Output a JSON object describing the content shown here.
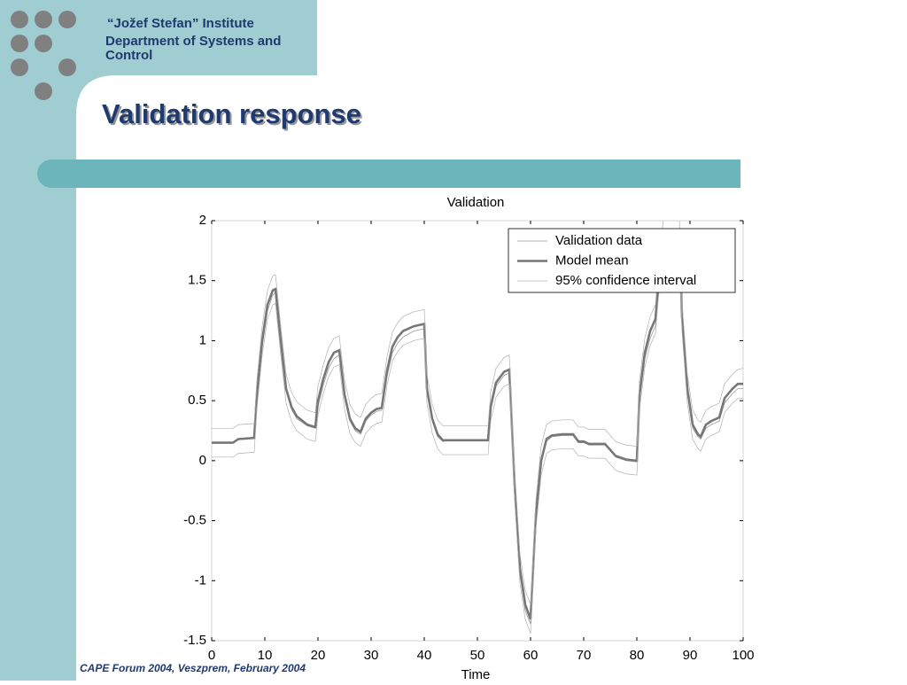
{
  "header": {
    "institute": "“Jožef Stefan” Institute",
    "department": "Department of Systems and Control"
  },
  "slide_title": "Validation response",
  "footer": "CAPE Forum 2004, Veszprem, February 2004",
  "chart_data": {
    "type": "line",
    "title": "Validation",
    "xlabel": "Time",
    "x": [
      0,
      4,
      5,
      8,
      8.5,
      9.5,
      10.5,
      11.5,
      12,
      13,
      14,
      15,
      16,
      18,
      19.5,
      20,
      21,
      22,
      23,
      24,
      25,
      26,
      27,
      28,
      29,
      30,
      31,
      32,
      33,
      34,
      35,
      36,
      38,
      40,
      40.5,
      41.5,
      42.5,
      43.5,
      45,
      48,
      52,
      52.5,
      53.5,
      55,
      56,
      57,
      58,
      59,
      60,
      61,
      62,
      63,
      64,
      66,
      68,
      69,
      70,
      71,
      74,
      76,
      78,
      80,
      80.5,
      81.5,
      82.5,
      83.5,
      84,
      85,
      88,
      88.5,
      89.5,
      90.5,
      91.5,
      92,
      93,
      94,
      95.5,
      96.5,
      98,
      99,
      100
    ],
    "series": [
      {
        "name": "Validation data",
        "color": "#9a9a9a",
        "values": [
          0.15,
          0.15,
          0.18,
          0.19,
          0.5,
          0.95,
          1.25,
          1.38,
          1.4,
          0.98,
          0.58,
          0.43,
          0.35,
          0.29,
          0.27,
          0.45,
          0.63,
          0.77,
          0.85,
          0.88,
          0.52,
          0.33,
          0.25,
          0.22,
          0.33,
          0.38,
          0.41,
          0.42,
          0.7,
          0.9,
          0.98,
          1.03,
          1.08,
          1.1,
          0.57,
          0.33,
          0.2,
          0.16,
          0.17,
          0.17,
          0.17,
          0.42,
          0.62,
          0.71,
          0.73,
          -0.25,
          -0.95,
          -1.25,
          -1.36,
          -0.5,
          -0.03,
          0.16,
          0.2,
          0.21,
          0.21,
          0.15,
          0.15,
          0.13,
          0.13,
          0.03,
          0.0,
          -0.01,
          0.5,
          0.85,
          1.02,
          1.12,
          1.4,
          1.85,
          1.85,
          1.15,
          0.56,
          0.27,
          0.2,
          0.18,
          0.27,
          0.3,
          0.33,
          0.48,
          0.56,
          0.6,
          0.6
        ]
      },
      {
        "name": "Model mean",
        "color": "#777777",
        "values": [
          0.15,
          0.15,
          0.18,
          0.19,
          0.55,
          1.0,
          1.3,
          1.42,
          1.43,
          1.0,
          0.6,
          0.45,
          0.37,
          0.3,
          0.28,
          0.5,
          0.68,
          0.82,
          0.9,
          0.92,
          0.55,
          0.35,
          0.27,
          0.24,
          0.35,
          0.4,
          0.43,
          0.44,
          0.75,
          0.95,
          1.03,
          1.08,
          1.12,
          1.14,
          0.6,
          0.35,
          0.22,
          0.17,
          0.17,
          0.17,
          0.17,
          0.45,
          0.65,
          0.74,
          0.76,
          -0.2,
          -0.9,
          -1.2,
          -1.32,
          -0.45,
          0.0,
          0.18,
          0.21,
          0.22,
          0.22,
          0.16,
          0.16,
          0.14,
          0.14,
          0.04,
          0.01,
          0.0,
          0.55,
          0.9,
          1.08,
          1.18,
          1.45,
          1.9,
          1.9,
          1.2,
          0.6,
          0.3,
          0.22,
          0.2,
          0.3,
          0.33,
          0.36,
          0.52,
          0.6,
          0.64,
          0.64
        ]
      },
      {
        "name": "95% confidence interval",
        "color": "#b0b0b0",
        "upper": [
          0.27,
          0.27,
          0.3,
          0.31,
          0.67,
          1.12,
          1.42,
          1.54,
          1.55,
          1.12,
          0.72,
          0.57,
          0.49,
          0.42,
          0.4,
          0.62,
          0.8,
          0.94,
          1.02,
          1.04,
          0.67,
          0.47,
          0.39,
          0.36,
          0.47,
          0.52,
          0.55,
          0.56,
          0.87,
          1.07,
          1.15,
          1.2,
          1.24,
          1.26,
          0.72,
          0.47,
          0.34,
          0.29,
          0.29,
          0.29,
          0.29,
          0.57,
          0.77,
          0.86,
          0.88,
          -0.08,
          -0.78,
          -1.08,
          -1.2,
          -0.33,
          0.12,
          0.3,
          0.33,
          0.34,
          0.34,
          0.28,
          0.28,
          0.26,
          0.26,
          0.16,
          0.13,
          0.12,
          0.67,
          1.02,
          1.2,
          1.3,
          1.57,
          2.02,
          2.02,
          1.32,
          0.72,
          0.42,
          0.34,
          0.32,
          0.42,
          0.45,
          0.48,
          0.64,
          0.72,
          0.76,
          0.77
        ],
        "lower": [
          0.03,
          0.03,
          0.06,
          0.07,
          0.43,
          0.88,
          1.18,
          1.3,
          1.31,
          0.88,
          0.48,
          0.33,
          0.25,
          0.18,
          0.16,
          0.38,
          0.56,
          0.7,
          0.78,
          0.8,
          0.43,
          0.23,
          0.15,
          0.12,
          0.23,
          0.28,
          0.31,
          0.32,
          0.63,
          0.83,
          0.91,
          0.96,
          1.0,
          1.02,
          0.48,
          0.23,
          0.1,
          0.05,
          0.05,
          0.05,
          0.05,
          0.33,
          0.53,
          0.62,
          0.64,
          -0.32,
          -1.02,
          -1.32,
          -1.44,
          -0.57,
          -0.12,
          0.06,
          0.09,
          0.1,
          0.1,
          0.04,
          0.04,
          0.02,
          0.02,
          -0.08,
          -0.11,
          -0.12,
          0.43,
          0.78,
          0.96,
          1.06,
          1.33,
          1.78,
          1.78,
          1.08,
          0.48,
          0.18,
          0.1,
          0.08,
          0.18,
          0.21,
          0.24,
          0.4,
          0.48,
          0.52,
          0.52
        ]
      }
    ],
    "xlim": [
      0,
      100
    ],
    "xticks": [
      0,
      10,
      20,
      30,
      40,
      50,
      60,
      70,
      80,
      90,
      100
    ],
    "ylim": [
      -1.5,
      2
    ],
    "yticks": [
      -1.5,
      -1,
      -0.5,
      0,
      0.5,
      1,
      1.5,
      2
    ],
    "legend": "upper right",
    "grid": false
  }
}
